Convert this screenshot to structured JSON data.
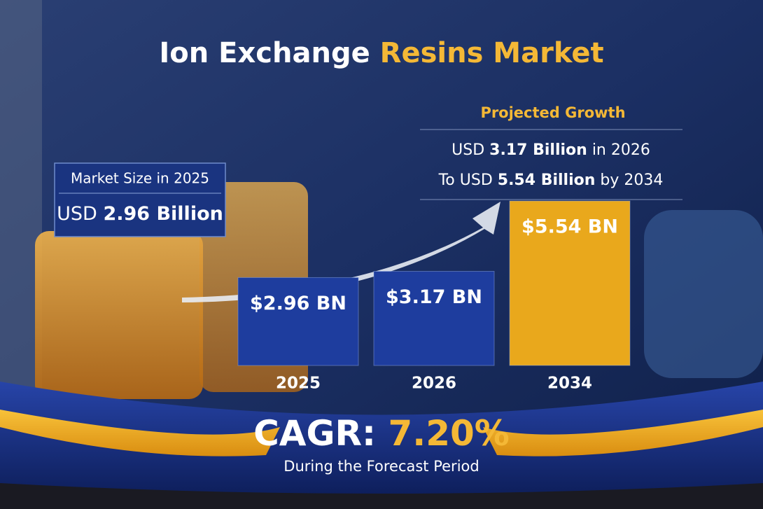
{
  "title": {
    "part1": "Ion Exchange",
    "part2": "Resins Market"
  },
  "market_size": {
    "label": "Market Size in 2025",
    "currency": "USD",
    "amount": "2.96 Billion"
  },
  "projection": {
    "heading": "Projected Growth",
    "line1": [
      "USD",
      "3.17 Billion",
      "in 2026"
    ],
    "line2": [
      "To USD",
      "5.54 Billion",
      "by 2034"
    ]
  },
  "chart_data": {
    "type": "bar",
    "categories": [
      "2025",
      "2026",
      "2034"
    ],
    "values": [
      2.96,
      3.17,
      5.54
    ],
    "value_labels": [
      "$2.96 BN",
      "$3.17 BN",
      "$5.54 BN"
    ],
    "colors": [
      "#1e3d9e",
      "#1e3d9e",
      "#e9a81c"
    ]
  },
  "cagr": {
    "label": "CAGR:",
    "value": "7.20%",
    "note": "During the Forecast Period"
  }
}
